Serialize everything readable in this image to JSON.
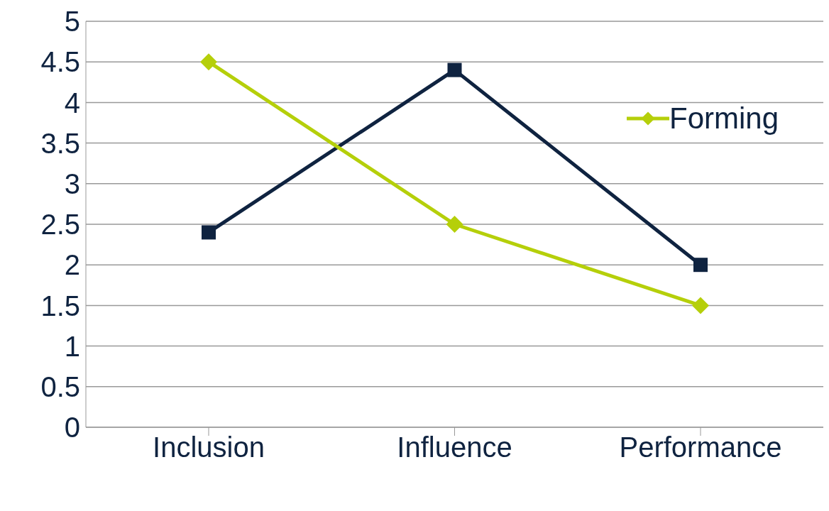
{
  "chart_data": {
    "type": "line",
    "categories": [
      "Inclusion",
      "Influence",
      "Performance"
    ],
    "series": [
      {
        "color": "#0f2340",
        "values": [
          2.4,
          4.4,
          2.0
        ],
        "marker": "square"
      },
      {
        "name": "Forming",
        "color": "#b5cf0a",
        "values": [
          4.5,
          2.5,
          1.5
        ],
        "marker": "diamond"
      }
    ],
    "ylim": [
      0,
      5
    ],
    "yticks": [
      0,
      0.5,
      1,
      1.5,
      2,
      2.5,
      3,
      3.5,
      4,
      4.5,
      5
    ],
    "grid": "y",
    "legend": "top right"
  }
}
